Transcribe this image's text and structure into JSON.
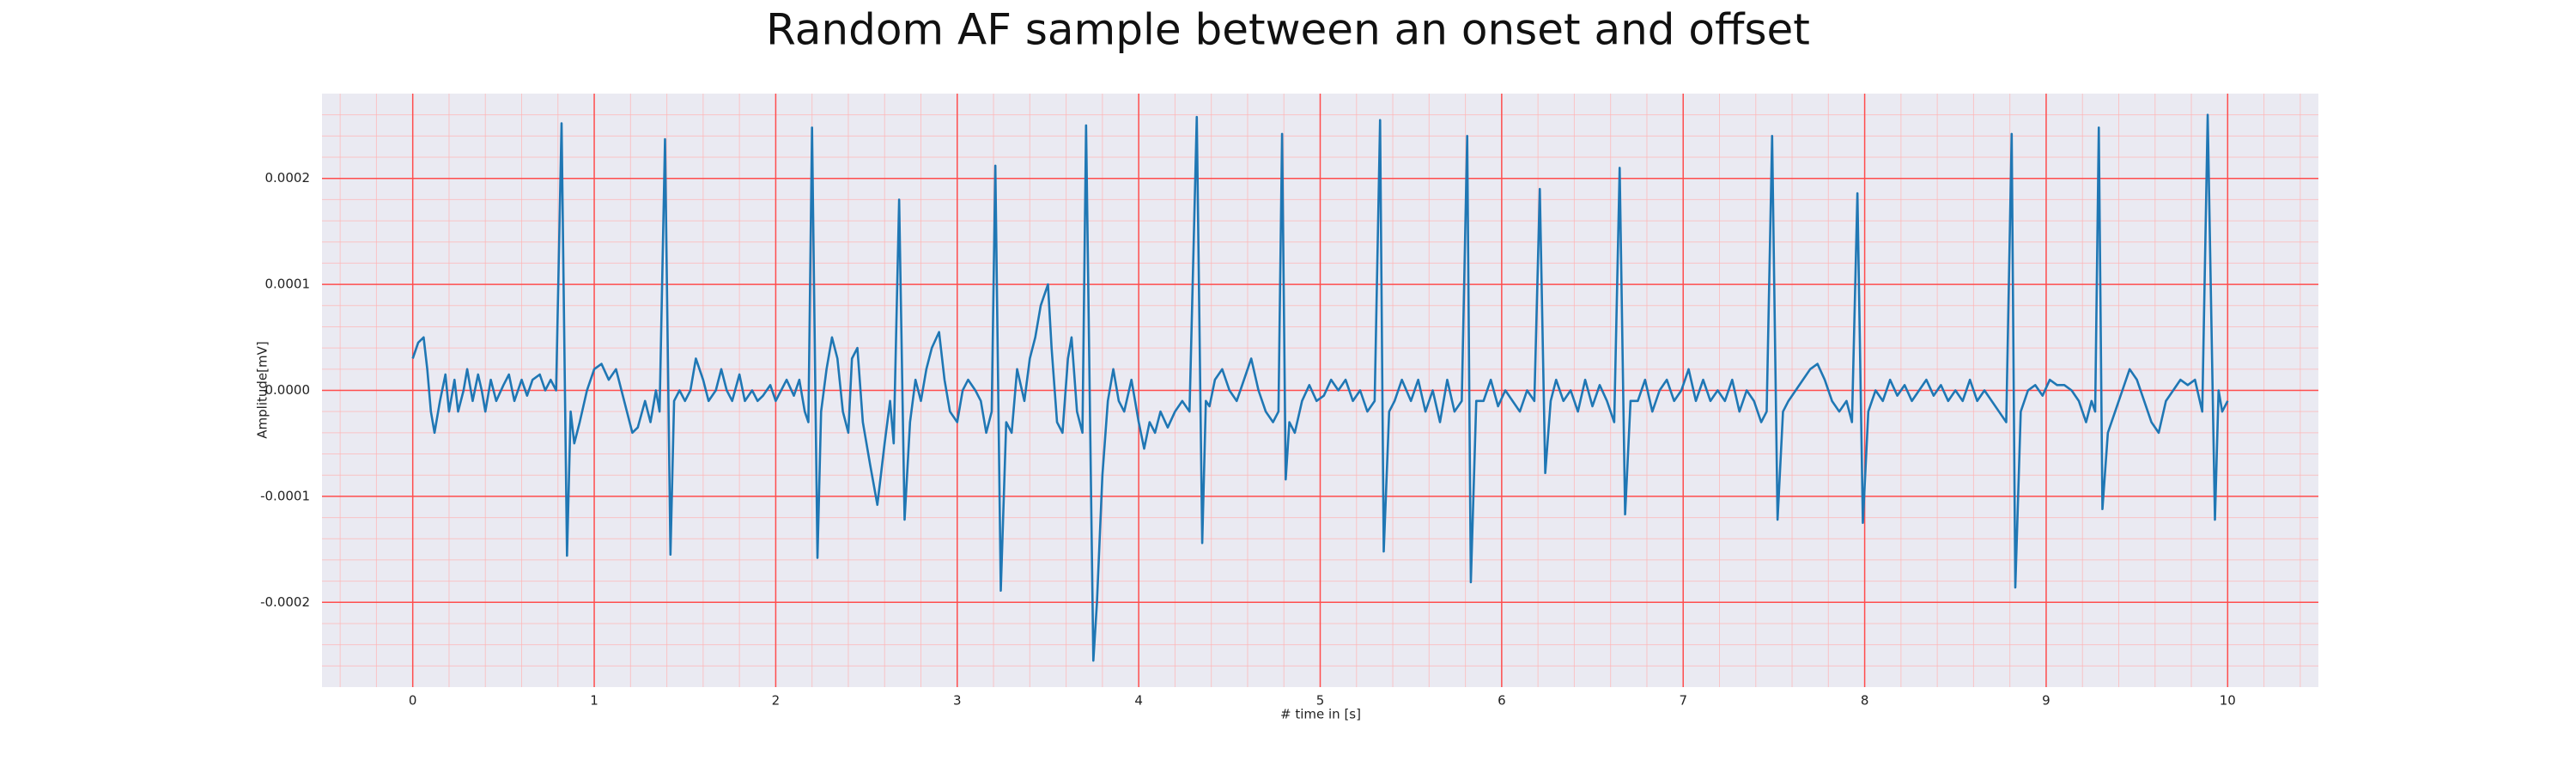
{
  "chart_data": {
    "type": "line",
    "title": "Random AF sample between an onset and offset",
    "xlabel": "# time in [s]",
    "ylabel": "Amplitude[mV]",
    "xlim": [
      -0.5,
      10.5
    ],
    "ylim": [
      -0.00028,
      0.00028
    ],
    "xticks": [
      0,
      1,
      2,
      3,
      4,
      5,
      6,
      7,
      8,
      9,
      10
    ],
    "yticks": [
      -0.0002,
      -0.0001,
      {
        "value": 0,
        "label": "0.0000"
      },
      0.0001,
      0.0002
    ],
    "grid": true,
    "grid_color": "#ff4d4d",
    "minor_divisions": 5,
    "minor_grid_color": "#ffb3b3",
    "background": "#eaeaf2",
    "series": [
      {
        "color": "#1f77b4",
        "x": [
          0,
          0.03,
          0.06,
          0.08,
          0.1,
          0.12,
          0.15,
          0.18,
          0.2,
          0.23,
          0.25,
          0.28,
          0.3,
          0.33,
          0.36,
          0.38,
          0.4,
          0.43,
          0.46,
          0.5,
          0.53,
          0.56,
          0.6,
          0.63,
          0.66,
          0.7,
          0.73,
          0.76,
          0.79,
          0.82,
          0.85,
          0.87,
          0.89,
          0.92,
          0.96,
          1.0,
          1.04,
          1.08,
          1.12,
          1.15,
          1.18,
          1.21,
          1.24,
          1.28,
          1.31,
          1.34,
          1.36,
          1.39,
          1.42,
          1.44,
          1.47,
          1.5,
          1.53,
          1.56,
          1.6,
          1.63,
          1.67,
          1.7,
          1.73,
          1.76,
          1.8,
          1.83,
          1.87,
          1.9,
          1.93,
          1.97,
          2.0,
          2.03,
          2.06,
          2.1,
          2.13,
          2.16,
          2.18,
          2.2,
          2.23,
          2.25,
          2.28,
          2.31,
          2.34,
          2.37,
          2.4,
          2.42,
          2.45,
          2.48,
          2.52,
          2.56,
          2.6,
          2.63,
          2.65,
          2.68,
          2.71,
          2.74,
          2.77,
          2.8,
          2.83,
          2.86,
          2.9,
          2.93,
          2.96,
          3.0,
          3.03,
          3.06,
          3.1,
          3.13,
          3.16,
          3.19,
          3.21,
          3.24,
          3.27,
          3.3,
          3.33,
          3.37,
          3.4,
          3.43,
          3.46,
          3.5,
          3.52,
          3.55,
          3.58,
          3.61,
          3.63,
          3.66,
          3.69,
          3.71,
          3.75,
          3.77,
          3.8,
          3.83,
          3.86,
          3.89,
          3.92,
          3.96,
          4.0,
          4.03,
          4.06,
          4.09,
          4.12,
          4.16,
          4.2,
          4.24,
          4.28,
          4.32,
          4.35,
          4.37,
          4.39,
          4.42,
          4.46,
          4.5,
          4.54,
          4.58,
          4.62,
          4.66,
          4.7,
          4.74,
          4.77,
          4.79,
          4.81,
          4.83,
          4.86,
          4.9,
          4.94,
          4.98,
          5.02,
          5.06,
          5.1,
          5.14,
          5.18,
          5.22,
          5.26,
          5.3,
          5.33,
          5.35,
          5.38,
          5.41,
          5.45,
          5.5,
          5.54,
          5.58,
          5.62,
          5.66,
          5.7,
          5.74,
          5.78,
          5.81,
          5.83,
          5.86,
          5.9,
          5.94,
          5.98,
          6.02,
          6.06,
          6.1,
          6.14,
          6.18,
          6.21,
          6.24,
          6.27,
          6.3,
          6.34,
          6.38,
          6.42,
          6.46,
          6.5,
          6.54,
          6.58,
          6.62,
          6.65,
          6.68,
          6.71,
          6.75,
          6.79,
          6.83,
          6.87,
          6.91,
          6.95,
          6.99,
          7.03,
          7.07,
          7.11,
          7.15,
          7.19,
          7.23,
          7.27,
          7.31,
          7.35,
          7.39,
          7.43,
          7.46,
          7.49,
          7.52,
          7.55,
          7.58,
          7.62,
          7.66,
          7.7,
          7.74,
          7.78,
          7.82,
          7.86,
          7.9,
          7.93,
          7.96,
          7.99,
          8.02,
          8.06,
          8.1,
          8.14,
          8.18,
          8.22,
          8.26,
          8.3,
          8.34,
          8.38,
          8.42,
          8.46,
          8.5,
          8.54,
          8.58,
          8.62,
          8.66,
          8.7,
          8.74,
          8.78,
          8.81,
          8.83,
          8.86,
          8.9,
          8.94,
          8.98,
          9.02,
          9.06,
          9.1,
          9.14,
          9.18,
          9.22,
          9.25,
          9.27,
          9.29,
          9.31,
          9.34,
          9.38,
          9.42,
          9.46,
          9.5,
          9.54,
          9.58,
          9.62,
          9.66,
          9.7,
          9.74,
          9.78,
          9.82,
          9.86,
          9.89,
          9.93,
          9.95,
          9.97,
          10.0
        ],
        "values": [
          3e-05,
          4.5e-05,
          5e-05,
          2e-05,
          -2e-05,
          -4e-05,
          -1e-05,
          1.5e-05,
          -2e-05,
          1e-05,
          -2e-05,
          0,
          2e-05,
          -1e-05,
          1.5e-05,
          0,
          -2e-05,
          1e-05,
          -1e-05,
          5e-06,
          1.5e-05,
          -1e-05,
          1e-05,
          -5e-06,
          1e-05,
          1.5e-05,
          0,
          1e-05,
          0,
          0.000252,
          -0.000156,
          -2e-05,
          -5e-05,
          -3e-05,
          0,
          2e-05,
          2.5e-05,
          1e-05,
          2e-05,
          0,
          -2e-05,
          -4e-05,
          -3.5e-05,
          -1e-05,
          -3e-05,
          0,
          -2e-05,
          0.000237,
          -0.000155,
          -1e-05,
          0,
          -1e-05,
          0,
          3e-05,
          1e-05,
          -1e-05,
          0,
          2e-05,
          0,
          -1e-05,
          1.5e-05,
          -1e-05,
          0,
          -1e-05,
          -5e-06,
          5e-06,
          -1e-05,
          0,
          1e-05,
          -5e-06,
          1e-05,
          -2e-05,
          -3e-05,
          0.000248,
          -0.000158,
          -2e-05,
          2e-05,
          5e-05,
          3e-05,
          -2e-05,
          -4e-05,
          3e-05,
          4e-05,
          -3e-05,
          -7e-05,
          -0.000108,
          -5e-05,
          -1e-05,
          -5e-05,
          0.00018,
          -0.000122,
          -3e-05,
          1e-05,
          -1e-05,
          2e-05,
          4e-05,
          5.5e-05,
          1e-05,
          -2e-05,
          -3e-05,
          0,
          1e-05,
          0,
          -1e-05,
          -4e-05,
          -2e-05,
          0.000212,
          -0.000189,
          -3e-05,
          -4e-05,
          2e-05,
          -1e-05,
          3e-05,
          5e-05,
          8e-05,
          0.0001,
          4e-05,
          -3e-05,
          -4e-05,
          3e-05,
          5e-05,
          -2e-05,
          -4e-05,
          0.00025,
          -0.000255,
          -0.0002,
          -8e-05,
          -1e-05,
          2e-05,
          -1e-05,
          -2e-05,
          1e-05,
          -3e-05,
          -5.5e-05,
          -3e-05,
          -4e-05,
          -2e-05,
          -3.5e-05,
          -2e-05,
          -1e-05,
          -2e-05,
          0.000258,
          -0.000144,
          -1e-05,
          -1.5e-05,
          1e-05,
          2e-05,
          0,
          -1e-05,
          1e-05,
          3e-05,
          0,
          -2e-05,
          -3e-05,
          -2e-05,
          0.000242,
          -8.4e-05,
          -3e-05,
          -4e-05,
          -1e-05,
          5e-06,
          -1e-05,
          -5e-06,
          1e-05,
          0,
          1e-05,
          -1e-05,
          0,
          -2e-05,
          -1e-05,
          0.000255,
          -0.000152,
          -2e-05,
          -1e-05,
          1e-05,
          -1e-05,
          1e-05,
          -2e-05,
          0,
          -3e-05,
          1e-05,
          -2e-05,
          -1e-05,
          0.00024,
          -0.000181,
          -1e-05,
          -1e-05,
          1e-05,
          -1.5e-05,
          0,
          -1e-05,
          -2e-05,
          0,
          -1e-05,
          0.00019,
          -7.8e-05,
          -1e-05,
          1e-05,
          -1e-05,
          0,
          -2e-05,
          1e-05,
          -1.5e-05,
          5e-06,
          -1e-05,
          -3e-05,
          0.00021,
          -0.000117,
          -1e-05,
          -1e-05,
          1e-05,
          -2e-05,
          0,
          1e-05,
          -1e-05,
          0,
          2e-05,
          -1e-05,
          1e-05,
          -1e-05,
          0,
          -1e-05,
          1e-05,
          -2e-05,
          0,
          -1e-05,
          -3e-05,
          -2e-05,
          0.00024,
          -0.000122,
          -2e-05,
          -1e-05,
          0,
          1e-05,
          2e-05,
          2.5e-05,
          1e-05,
          -1e-05,
          -2e-05,
          -1e-05,
          -3e-05,
          0.000186,
          -0.000125,
          -2e-05,
          0,
          -1e-05,
          1e-05,
          -5e-06,
          5e-06,
          -1e-05,
          0,
          1e-05,
          -5e-06,
          5e-06,
          -1e-05,
          0,
          -1e-05,
          1e-05,
          -1e-05,
          0,
          -1e-05,
          -2e-05,
          -3e-05,
          0.000242,
          -0.000186,
          -2e-05,
          0,
          5e-06,
          -5e-06,
          1e-05,
          5e-06,
          5e-06,
          0,
          -1e-05,
          -3e-05,
          -1e-05,
          -2e-05,
          0.000248,
          -0.000112,
          -4e-05,
          -2e-05,
          0,
          2e-05,
          1e-05,
          -1e-05,
          -3e-05,
          -4e-05,
          -1e-05,
          0,
          1e-05,
          5e-06,
          1e-05,
          -2e-05,
          0.00026,
          -0.000122,
          0,
          -2e-05,
          -1e-05
        ]
      }
    ]
  }
}
